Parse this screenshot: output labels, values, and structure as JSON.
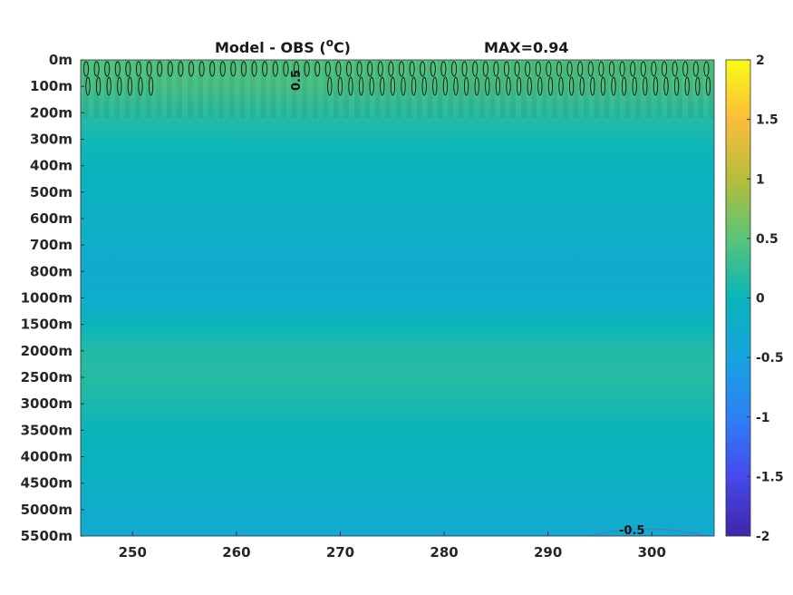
{
  "chart_data": {
    "type": "heatmap",
    "title": "Model - OBS (°C)",
    "title_parts": {
      "main": "Model - OBS (",
      "superscript": "o",
      "unit": "C)"
    },
    "annotation": "MAX=0.94",
    "xlabel": "",
    "ylabel": "",
    "x_ticks": [
      250,
      260,
      270,
      280,
      290,
      300
    ],
    "xlim": [
      245,
      306
    ],
    "y_tick_labels": [
      "0m",
      "100m",
      "200m",
      "300m",
      "400m",
      "500m",
      "600m",
      "700m",
      "800m",
      "1000m",
      "1500m",
      "2000m",
      "2500m",
      "3000m",
      "3500m",
      "4000m",
      "4500m",
      "5000m",
      "5500m"
    ],
    "y_axis_reversed": true,
    "colorbar": {
      "colormap": "parula",
      "range": [
        -2,
        2
      ],
      "ticks": [
        "2",
        "1.5",
        "1",
        "0.5",
        "0",
        "-0.5",
        "-1",
        "-1.5",
        "-2"
      ]
    },
    "contour_labels": [
      "0.5",
      "-0.5"
    ],
    "depth_profile": [
      {
        "depth": "0m",
        "value": 0.45
      },
      {
        "depth": "100m",
        "value": 0.4
      },
      {
        "depth": "200m",
        "value": 0.2
      },
      {
        "depth": "300m",
        "value": 0.05
      },
      {
        "depth": "400m",
        "value": -0.02
      },
      {
        "depth": "500m",
        "value": -0.08
      },
      {
        "depth": "600m",
        "value": -0.15
      },
      {
        "depth": "700m",
        "value": -0.22
      },
      {
        "depth": "800m",
        "value": -0.28
      },
      {
        "depth": "1000m",
        "value": -0.25
      },
      {
        "depth": "1500m",
        "value": 0.0
      },
      {
        "depth": "2000m",
        "value": 0.15
      },
      {
        "depth": "2500m",
        "value": 0.18
      },
      {
        "depth": "3000m",
        "value": 0.1
      },
      {
        "depth": "3500m",
        "value": -0.02
      },
      {
        "depth": "4000m",
        "value": -0.05
      },
      {
        "depth": "4500m",
        "value": -0.12
      },
      {
        "depth": "5000m",
        "value": -0.25
      },
      {
        "depth": "5500m",
        "value": -0.32
      }
    ],
    "grid": false
  }
}
